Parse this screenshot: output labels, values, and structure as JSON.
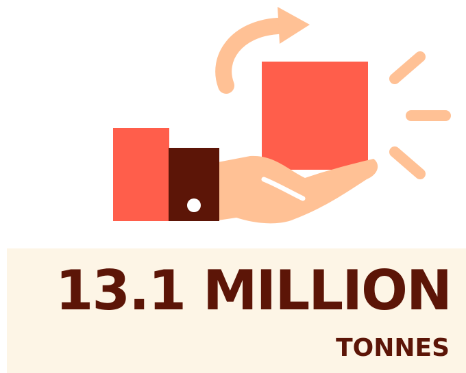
{
  "stat": {
    "value": "13.1 MILLION",
    "unit": "TONNES"
  },
  "colors": {
    "coral": "#ff5e4b",
    "dark_brown": "#5c1507",
    "peach": "#ffc195",
    "panel_bg": "#fdf5e6"
  },
  "icons": [
    "rotate-arrow-icon",
    "box-icon",
    "hand-icon",
    "sleeve-icon",
    "cuff-icon",
    "sparkle-lines-icon"
  ]
}
